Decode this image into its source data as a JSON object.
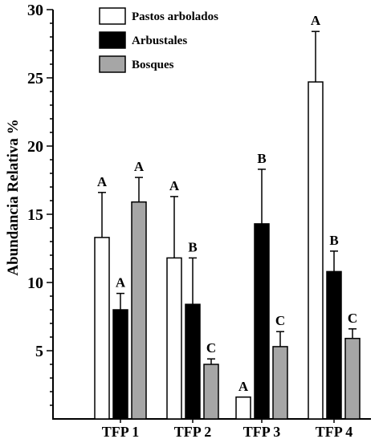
{
  "chart_data": {
    "type": "bar",
    "title": "",
    "xlabel": "",
    "ylabel": "Abundancia Relativa %",
    "ylim": [
      0,
      30
    ],
    "yticks": [
      5,
      10,
      15,
      20,
      25,
      30
    ],
    "grid": false,
    "legend_position": "top-center",
    "categories": [
      "TFP 1",
      "TFP 2",
      "TFP 3",
      "TFP 4"
    ],
    "series": [
      {
        "name": "Pastos arbolados",
        "color": "#ffffff",
        "values": [
          13.3,
          11.8,
          1.6,
          24.7
        ],
        "error": [
          3.3,
          4.5,
          0,
          3.7
        ],
        "letters": [
          "A",
          "A",
          "A",
          "A"
        ]
      },
      {
        "name": "Arbustales",
        "color": "#000000",
        "values": [
          8.0,
          8.4,
          14.3,
          10.8
        ],
        "error": [
          1.2,
          3.4,
          4.0,
          1.5
        ],
        "letters": [
          "A",
          "B",
          "B",
          "B"
        ]
      },
      {
        "name": "Bosques",
        "color": "#a6a6a6",
        "values": [
          15.9,
          4.0,
          5.3,
          5.9
        ],
        "error": [
          1.8,
          0.4,
          1.1,
          0.7
        ],
        "letters": [
          "A",
          "C",
          "C",
          "C"
        ]
      }
    ]
  }
}
